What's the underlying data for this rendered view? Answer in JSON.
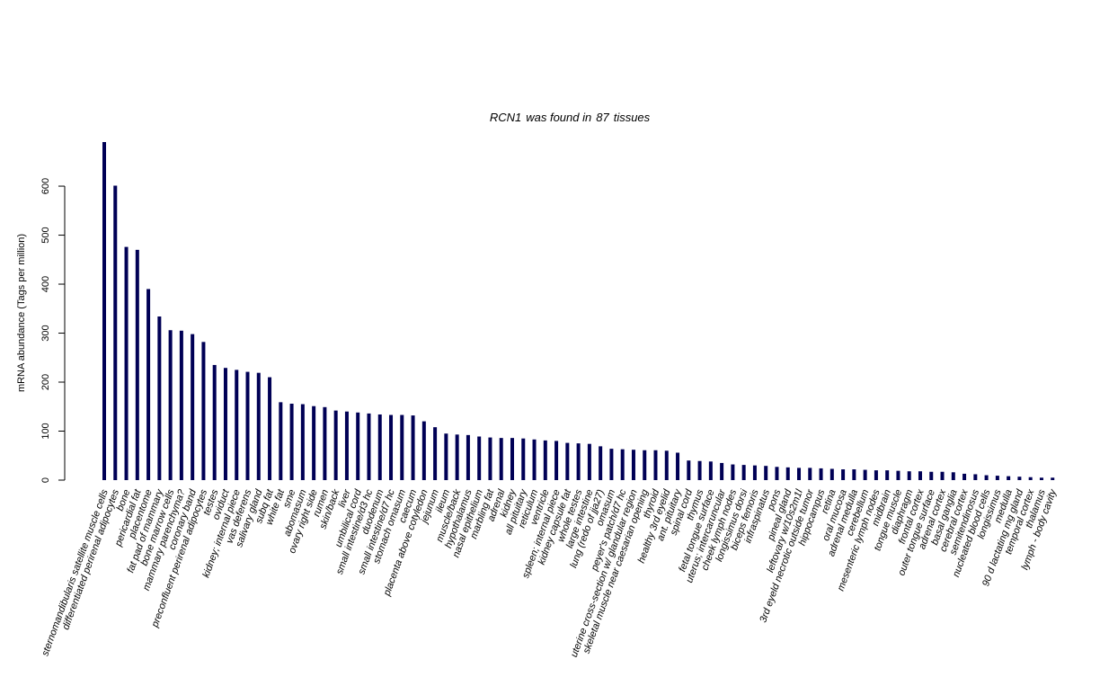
{
  "chart_data": {
    "type": "bar",
    "title_gene": "RCN1",
    "title_mid": "was found in",
    "title_count": "87",
    "title_end": "tissues",
    "ylabel": "mRNA abundance (Tags per million)",
    "ylim": [
      0,
      690
    ],
    "yticks": [
      0,
      100,
      200,
      300,
      400,
      500,
      600
    ],
    "bar_color": "#000055",
    "categories": [
      "sternomandibularis satellite muscle cells",
      "differentiated perirenal adipocytes",
      "bone",
      "pericardial fat",
      "placentome",
      "fat pad of mammary",
      "bone marrow cells",
      "mammary parenchyma?",
      "coronary band",
      "preconfluent perirenal adipocytes",
      "testes",
      "oviduct",
      "kidney; internal piece",
      "vas deferens",
      "salivary gland",
      "subq fat",
      "white fat",
      "sme",
      "abomasum",
      "ovary right side",
      "rumen",
      "skin/back",
      "liver",
      "umbilical cord",
      "small intestine/d3 hc",
      "duodenum",
      "small intestine/d7 hc",
      "stomach omasum",
      "caecum",
      "placenta above cotyledon",
      "jejunum",
      "ileum",
      "muscle/back",
      "hypothalamus",
      "nasal epithelium",
      "marbling fat",
      "adrenal",
      "kidney",
      "all pituitary",
      "reticulum",
      "ventricle",
      "spleen; internal piece",
      "kidney capsule fat",
      "whole testes",
      "large intestine",
      "lung (redo of jja27)",
      "omasum",
      "peyer's patch/d7 hc",
      "uterine cross-section w/ glandular region",
      "skeletal muscle near caesarian opening",
      "thyroid",
      "healthy 3rd eyelid",
      "ant. pituitary",
      "spinal cord",
      "thymus",
      "fetal tongue surface",
      "uterus; intercaruncular",
      "cheek lymph nodes",
      "longissimus dorsi",
      "biceps femoris",
      "infraspinatus",
      "pons",
      "pineal gland",
      "leftovary w/10s2m1l",
      "3rd eyeld necrotic outside tumor",
      "hippocampus",
      "retina",
      "oral mucosa",
      "adrenal medulla",
      "cerebellum",
      "mesenteric lymph nodes",
      "midbrain",
      "tongue muscle",
      "diaphragm",
      "frontal cortex",
      "outer tongue surface",
      "adrenal cortex",
      "basal ganglia",
      "cerebral cortex",
      "semitendinosus",
      "nucleated blood cells",
      "longissimus",
      "medulla",
      "90 d lactating mg gland",
      "temporal cortex",
      "thalamus",
      "lymph - body cavity"
    ],
    "values": [
      690,
      601,
      476,
      470,
      390,
      334,
      306,
      305,
      298,
      282,
      235,
      229,
      225,
      221,
      219,
      210,
      159,
      156,
      155,
      151,
      149,
      142,
      140,
      138,
      136,
      134,
      133,
      133,
      132,
      120,
      108,
      95,
      93,
      92,
      89,
      87,
      86,
      86,
      85,
      83,
      81,
      80,
      76,
      75,
      74,
      69,
      64,
      63,
      62,
      61,
      61,
      60,
      56,
      40,
      39,
      38,
      35,
      32,
      31,
      30,
      29,
      27,
      26,
      25,
      25,
      24,
      23,
      22,
      22,
      21,
      20,
      20,
      19,
      18,
      18,
      17,
      17,
      16,
      13,
      12,
      10,
      9,
      8,
      7,
      6,
      5,
      5
    ]
  }
}
